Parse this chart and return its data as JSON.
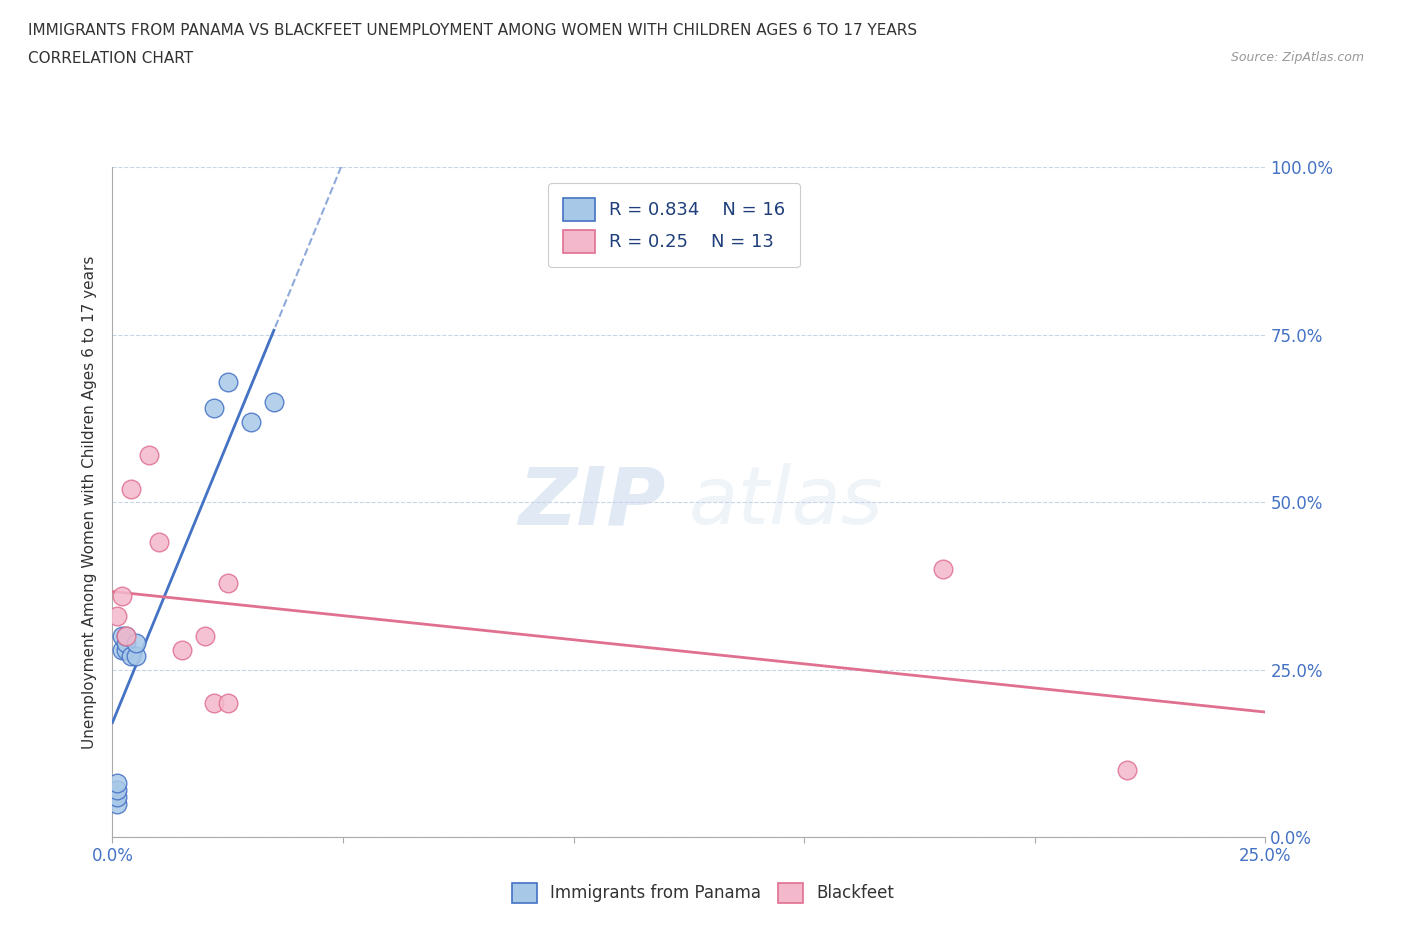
{
  "title_line1": "IMMIGRANTS FROM PANAMA VS BLACKFEET UNEMPLOYMENT AMONG WOMEN WITH CHILDREN AGES 6 TO 17 YEARS",
  "title_line2": "CORRELATION CHART",
  "source": "Source: ZipAtlas.com",
  "ylabel": "Unemployment Among Women with Children Ages 6 to 17 years",
  "xlim": [
    0.0,
    0.25
  ],
  "ylim": [
    0.0,
    1.0
  ],
  "panama_color": "#a8c8e8",
  "blackfeet_color": "#f4b8cc",
  "panama_edge": "#4472c4",
  "blackfeet_edge": "#e07090",
  "trend_panama_color": "#4472c4",
  "trend_blackfeet_color": "#e07090",
  "R_panama": 0.834,
  "N_panama": 16,
  "R_blackfeet": 0.25,
  "N_blackfeet": 13,
  "panama_x": [
    0.001,
    0.001,
    0.001,
    0.001,
    0.002,
    0.002,
    0.003,
    0.003,
    0.003,
    0.004,
    0.005,
    0.005,
    0.022,
    0.025,
    0.03,
    0.035
  ],
  "panama_y": [
    0.05,
    0.06,
    0.07,
    0.08,
    0.28,
    0.3,
    0.28,
    0.29,
    0.3,
    0.27,
    0.27,
    0.29,
    0.64,
    0.68,
    0.62,
    0.65
  ],
  "blackfeet_x": [
    0.001,
    0.002,
    0.003,
    0.004,
    0.008,
    0.01,
    0.015,
    0.02,
    0.022,
    0.025,
    0.025,
    0.18,
    0.22
  ],
  "blackfeet_y": [
    0.33,
    0.36,
    0.3,
    0.52,
    0.57,
    0.44,
    0.28,
    0.3,
    0.2,
    0.2,
    0.38,
    0.4,
    0.1
  ],
  "watermark_zip": "ZIP",
  "watermark_atlas": "atlas",
  "legend_color": "#1f3f7a",
  "background_color": "#ffffff",
  "grid_color": "#c8d4e8",
  "panel_bottom_label_panama": "Immigrants from Panama",
  "panel_bottom_label_blackfeet": "Blackfeet"
}
